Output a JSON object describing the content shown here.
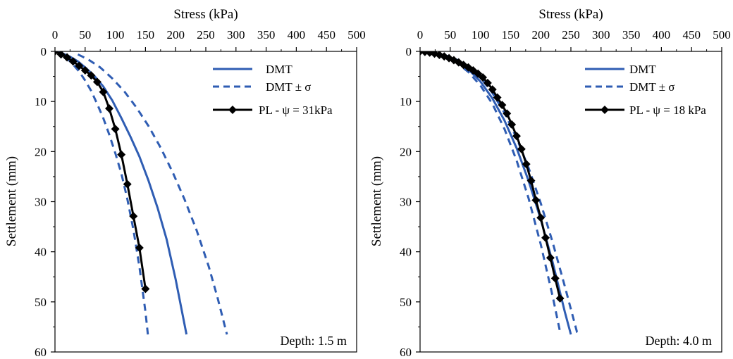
{
  "colors": {
    "dmt": "#2f5db3",
    "pl": "#000000",
    "axis": "#000000"
  },
  "chart_data": [
    {
      "type": "line",
      "xlabel": "Stress (kPa)",
      "ylabel": "Settlement (mm)",
      "xlim": [
        0,
        500
      ],
      "ylim": [
        0,
        60
      ],
      "x_ticks": [
        0,
        50,
        100,
        150,
        200,
        250,
        300,
        350,
        400,
        450,
        500
      ],
      "y_ticks": [
        0,
        10,
        20,
        30,
        40,
        50,
        60
      ],
      "y_inverted": true,
      "x_axis_position": "top",
      "legend_position": "top-right",
      "annotation": "Depth: 1.5 m",
      "series": [
        {
          "name": "DMT",
          "style": "solid",
          "marker": "none",
          "x": [
            0,
            12,
            24,
            38,
            52,
            66,
            80,
            95,
            110,
            125,
            140,
            155,
            170,
            185,
            200,
            218
          ],
          "y": [
            0,
            0.4,
            1.0,
            2.0,
            3.4,
            5.0,
            7.0,
            9.8,
            13.3,
            17.0,
            21.0,
            25.8,
            31.2,
            37.5,
            45.5,
            56.5
          ]
        },
        {
          "name": "DMT ± σ",
          "style": "dashed",
          "marker": "none",
          "x": [
            0,
            10,
            20,
            30,
            40,
            50,
            60,
            70,
            80,
            90,
            100,
            110,
            120,
            130,
            140,
            150,
            154
          ],
          "y": [
            0,
            0.5,
            1.4,
            2.6,
            4.0,
            5.8,
            7.9,
            10.5,
            13.3,
            16.6,
            20.3,
            24.4,
            29.5,
            35.6,
            43.0,
            52.0,
            56.5
          ]
        },
        {
          "name": "",
          "style": "dashed",
          "marker": "none",
          "x": [
            38,
            55,
            75,
            95,
            115,
            135,
            155,
            175,
            195,
            215,
            235,
            255,
            270,
            285
          ],
          "y": [
            0.6,
            1.6,
            3.2,
            5.4,
            8.0,
            11.2,
            14.9,
            19.2,
            24.1,
            29.6,
            35.8,
            43.0,
            49.4,
            56.5
          ]
        },
        {
          "name": "PL - ψ = 31kPa",
          "style": "solid",
          "marker": "diamond",
          "x": [
            0,
            10,
            20,
            30,
            40,
            50,
            60,
            70,
            80,
            90,
            100,
            110,
            120,
            130,
            140,
            150,
            160,
            170,
            180
          ],
          "y": [
            0,
            0.6,
            1.2,
            2.0,
            2.9,
            3.8,
            4.8,
            6.1,
            8.1,
            11.4,
            15.5,
            20.6,
            26.5,
            32.9,
            39.2,
            47.4,
            47.4,
            47.4,
            47.4
          ],
          "x_points": [
            0,
            10,
            20,
            30,
            40,
            50,
            60,
            70,
            80,
            90,
            100,
            110,
            120,
            130,
            140,
            150,
            160,
            170,
            180
          ]
        }
      ]
    },
    {
      "type": "line",
      "xlabel": "Stress (kPa)",
      "ylabel": "Settlement (mm)",
      "xlim": [
        0,
        500
      ],
      "ylim": [
        0,
        60
      ],
      "x_ticks": [
        0,
        50,
        100,
        150,
        200,
        250,
        300,
        350,
        400,
        450,
        500
      ],
      "y_ticks": [
        0,
        10,
        20,
        30,
        40,
        50,
        60
      ],
      "y_inverted": true,
      "x_axis_position": "top",
      "legend_position": "top-right",
      "annotation": "Depth: 4.0 m",
      "series": [
        {
          "name": "DMT",
          "style": "solid",
          "marker": "none",
          "x": [
            0,
            20,
            40,
            60,
            80,
            100,
            120,
            140,
            160,
            180,
            200,
            220,
            240,
            250
          ],
          "y": [
            0,
            0.3,
            0.9,
            2.0,
            3.6,
            6.0,
            9.4,
            13.8,
            19.3,
            25.9,
            33.5,
            42.2,
            52.0,
            56.5
          ]
        },
        {
          "name": "DMT ± σ",
          "style": "dashed",
          "marker": "none",
          "x": [
            0,
            20,
            40,
            60,
            80,
            100,
            120,
            140,
            160,
            180,
            200,
            220,
            233
          ],
          "y": [
            0,
            0.3,
            1.0,
            2.2,
            4.1,
            6.8,
            10.5,
            15.5,
            21.8,
            29.4,
            38.5,
            49.0,
            56.5
          ]
        },
        {
          "name": "",
          "style": "dashed",
          "marker": "none",
          "x": [
            0,
            20,
            40,
            60,
            80,
            100,
            120,
            140,
            160,
            180,
            200,
            220,
            240,
            260,
            268
          ],
          "y": [
            0,
            0.2,
            0.7,
            1.6,
            3.0,
            5.2,
            8.3,
            12.3,
            17.3,
            23.3,
            30.3,
            38.2,
            46.9,
            56.0,
            56.5
          ]
        },
        {
          "name": "PL - ψ = 18 kPa",
          "style": "solid",
          "marker": "diamond",
          "x": [
            0,
            8,
            16,
            24,
            32,
            40,
            48,
            56,
            64,
            72,
            80,
            88,
            96,
            104,
            112,
            120,
            128,
            136,
            144,
            152,
            160,
            168,
            176,
            184,
            192,
            200,
            208,
            216,
            224,
            232
          ],
          "y": [
            0,
            0.1,
            0.25,
            0.45,
            0.7,
            1.0,
            1.35,
            1.75,
            2.2,
            2.7,
            3.2,
            3.8,
            4.45,
            5.2,
            6.3,
            7.6,
            9.2,
            10.7,
            12.4,
            14.6,
            16.9,
            19.5,
            22.5,
            25.8,
            29.7,
            33.2,
            37.2,
            41.2,
            45.3,
            49.3
          ]
        }
      ]
    }
  ]
}
